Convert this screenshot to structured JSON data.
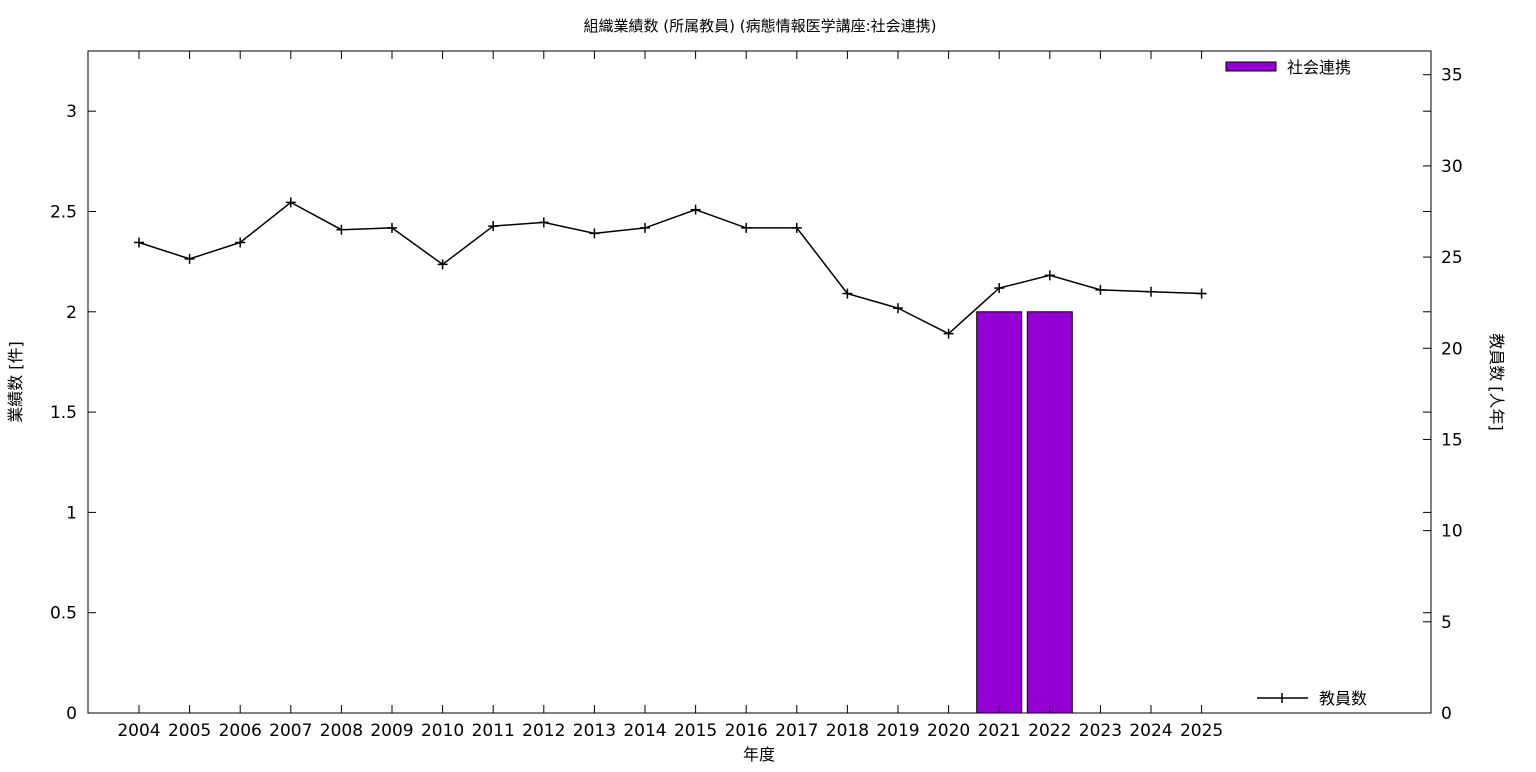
{
  "chart_data": {
    "type": "bar",
    "title": "組織業績数 (所属教員) (病態情報医学講座:社会連携)",
    "xlabel": "年度",
    "ylabel": "業績数 [件]",
    "y2label": "教員数 [人年]",
    "categories": [
      "2004",
      "2005",
      "2006",
      "2007",
      "2008",
      "2009",
      "2010",
      "2011",
      "2012",
      "2013",
      "2014",
      "2015",
      "2016",
      "2017",
      "2018",
      "2019",
      "2020",
      "2021",
      "2022",
      "2023",
      "2024",
      "2025"
    ],
    "ylim": [
      0,
      3.3
    ],
    "yticks": [
      "0",
      "0.5",
      "1",
      "1.5",
      "2",
      "2.5",
      "3"
    ],
    "y2lim": [
      0,
      36.3
    ],
    "y2ticks": [
      "0",
      "5",
      "10",
      "15",
      "20",
      "25",
      "30",
      "35"
    ],
    "grid": false,
    "series": [
      {
        "name": "社会連携",
        "type": "bar",
        "axis": "left",
        "color": "#9400D3",
        "values": [
          0,
          0,
          0,
          0,
          0,
          0,
          0,
          0,
          0,
          0,
          0,
          0,
          0,
          0,
          0,
          0,
          0,
          2,
          2,
          0,
          0,
          0
        ]
      },
      {
        "name": "教員数",
        "type": "line",
        "axis": "right",
        "color": "#000000",
        "values": [
          25.8,
          24.9,
          25.8,
          28.0,
          26.5,
          26.6,
          24.6,
          26.7,
          26.9,
          26.3,
          26.6,
          27.6,
          26.6,
          26.6,
          23.0,
          22.2,
          20.8,
          23.3,
          24.0,
          23.2,
          23.1,
          23.0
        ]
      }
    ],
    "legend": {
      "bar_position": "top-right",
      "line_position": "bottom-right"
    }
  }
}
